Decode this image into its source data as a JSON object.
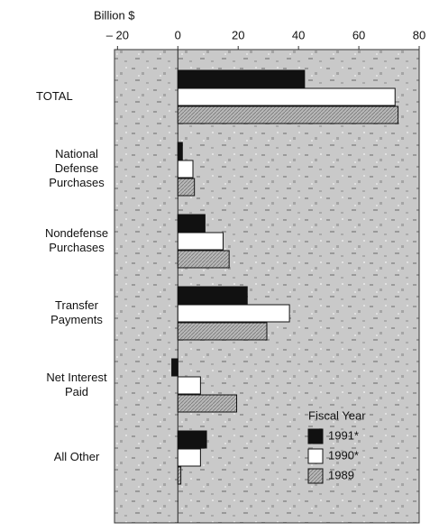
{
  "chart_data": {
    "type": "barh",
    "xlabel": "Billion $",
    "categories": [
      "TOTAL",
      "National\nDefense\nPurchases",
      "Nondefense\nPurchases",
      "Transfer\nPayments",
      "Net Interest\nPaid",
      "All Other"
    ],
    "series": [
      {
        "name": "1991*",
        "color": "#111111",
        "values": [
          42,
          1.5,
          9,
          23,
          -2,
          9.5
        ]
      },
      {
        "name": "1990*",
        "color": "#ffffff",
        "values": [
          72,
          5,
          15,
          37,
          7.5,
          7.5
        ]
      },
      {
        "name": "1989",
        "color": "#b0b0b0",
        "values": [
          73,
          5.5,
          17,
          29.5,
          19.5,
          1
        ]
      }
    ],
    "xlim": [
      -21,
      80
    ],
    "xticks": [
      {
        "value": -20,
        "label": "– 20"
      },
      0,
      20,
      40,
      60,
      80
    ],
    "legend_title": "Fiscal Year",
    "legend": "lower right"
  }
}
